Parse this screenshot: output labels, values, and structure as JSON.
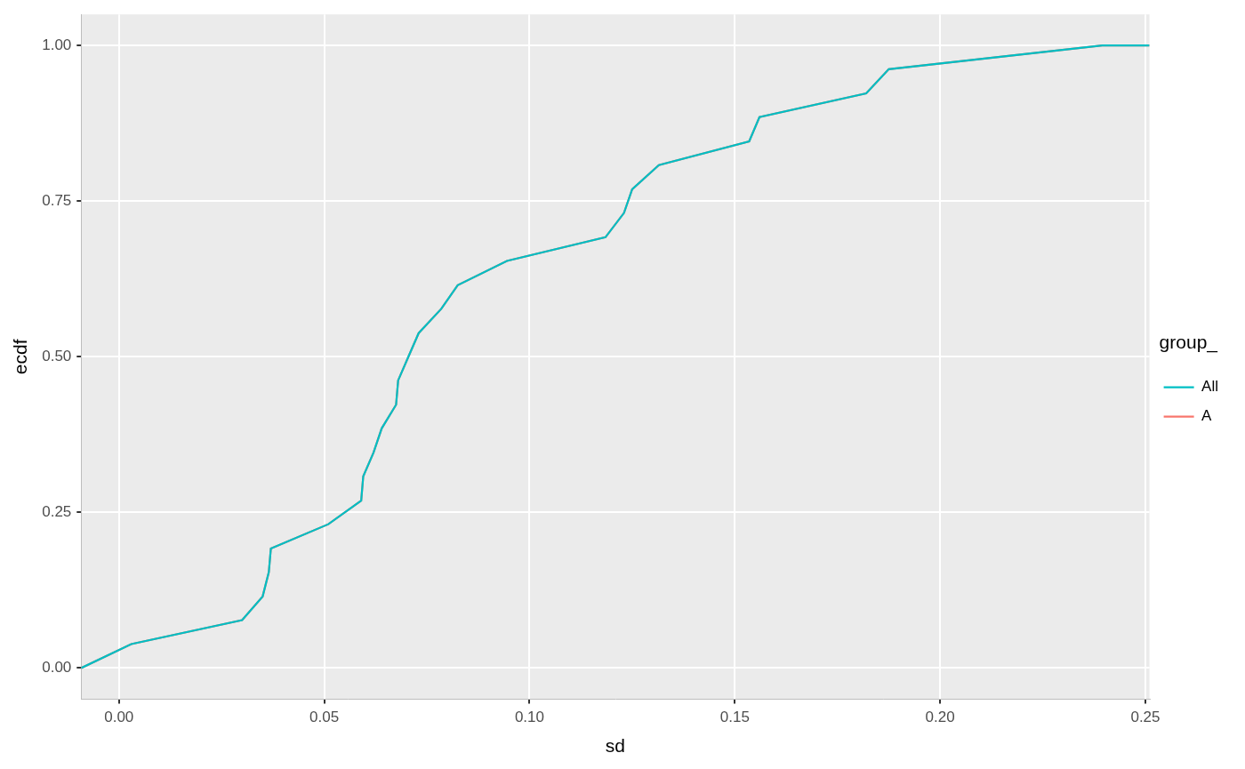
{
  "chart_data": {
    "type": "line",
    "x_label": "sd",
    "y_label": "ecdf",
    "legend_title": "group_",
    "legend": "right",
    "grid": true,
    "x": [
      -0.0092,
      0.003,
      0.03,
      0.035,
      0.0365,
      0.037,
      0.051,
      0.059,
      0.0595,
      0.062,
      0.064,
      0.0675,
      0.068,
      0.0705,
      0.073,
      0.0785,
      0.0825,
      0.0945,
      0.1185,
      0.123,
      0.125,
      0.1315,
      0.1535,
      0.156,
      0.182,
      0.1875,
      0.2395,
      0.251
    ],
    "series": [
      {
        "name": "A",
        "color": "#F8766D",
        "values": [
          0,
          0.0385,
          0.077,
          0.115,
          0.154,
          0.192,
          0.231,
          0.269,
          0.308,
          0.346,
          0.385,
          0.423,
          0.462,
          0.5,
          0.538,
          0.577,
          0.615,
          0.654,
          0.692,
          0.731,
          0.769,
          0.808,
          0.846,
          0.885,
          0.923,
          0.962,
          1.0,
          1.0
        ]
      },
      {
        "name": "All",
        "color": "#00BFC4",
        "values": [
          0,
          0.0385,
          0.077,
          0.115,
          0.154,
          0.192,
          0.231,
          0.269,
          0.308,
          0.346,
          0.385,
          0.423,
          0.462,
          0.5,
          0.538,
          0.577,
          0.615,
          0.654,
          0.692,
          0.731,
          0.769,
          0.808,
          0.846,
          0.885,
          0.923,
          0.962,
          1.0,
          1.0
        ]
      }
    ],
    "xlim": [
      -0.0092,
      0.251
    ],
    "xticks": [
      {
        "value": 0,
        "label": "0.00"
      },
      {
        "value": 0.05,
        "label": "0.05"
      },
      {
        "value": 0.1,
        "label": "0.10"
      },
      {
        "value": 0.15,
        "label": "0.15"
      },
      {
        "value": 0.2,
        "label": "0.20"
      },
      {
        "value": 0.25,
        "label": "0.25"
      }
    ],
    "ylim": [
      -0.05,
      1.05
    ],
    "yticks": [
      {
        "value": 0,
        "label": "0.00"
      },
      {
        "value": 0.25,
        "label": "0.25"
      },
      {
        "value": 0.5,
        "label": "0.50"
      },
      {
        "value": 0.75,
        "label": "0.75"
      },
      {
        "value": 1,
        "label": "1.00"
      }
    ]
  }
}
